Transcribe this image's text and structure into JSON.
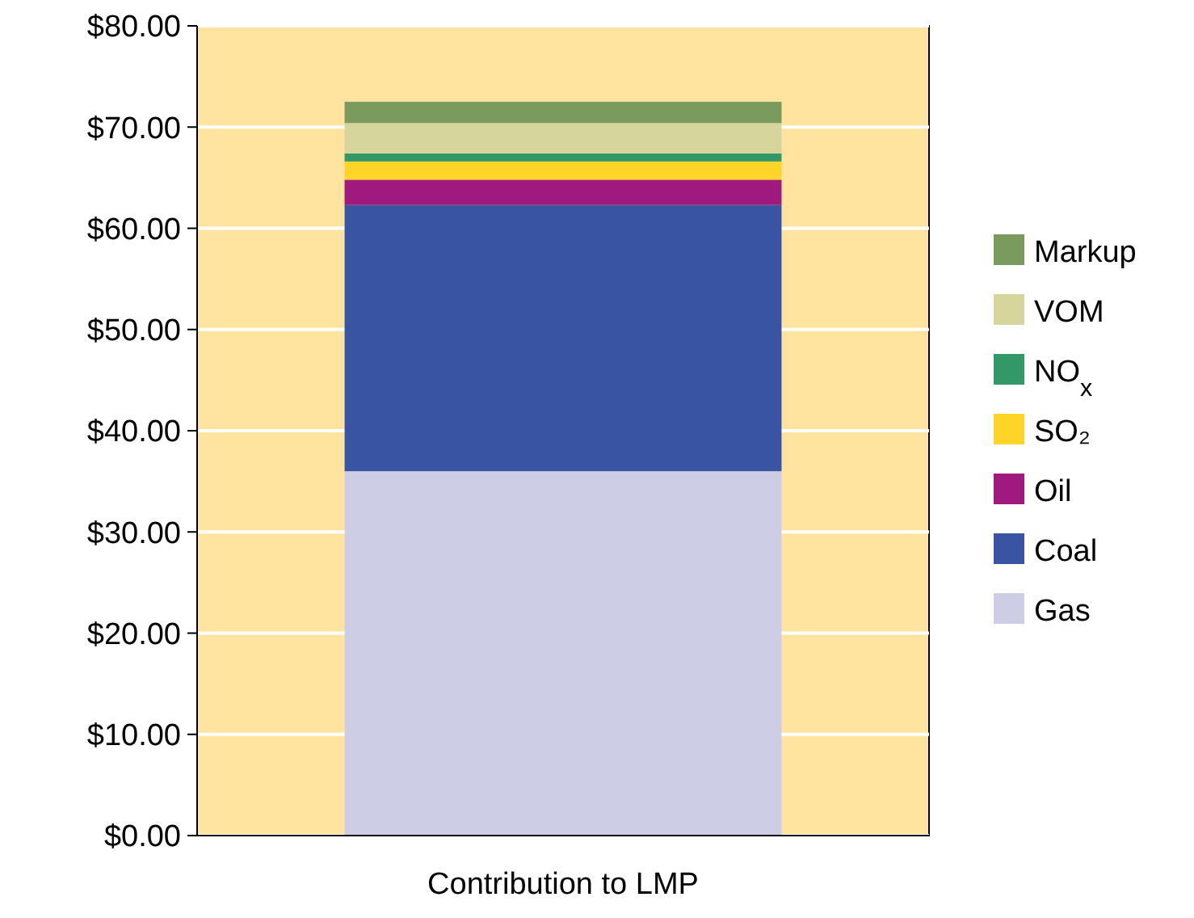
{
  "chart_data": {
    "type": "bar",
    "stacked": true,
    "categories": [
      "Contribution to LMP"
    ],
    "series": [
      {
        "name": "Gas",
        "color": "#cecde6",
        "values": [
          36
        ]
      },
      {
        "name": "Coal",
        "color": "#3a54a4",
        "values": [
          26.3
        ]
      },
      {
        "name": "Oil",
        "color": "#a0197e",
        "values": [
          2.5
        ]
      },
      {
        "name": "SO₂",
        "color": "#fed429",
        "values": [
          1.8
        ]
      },
      {
        "name": "NO$_{x}$",
        "color": "#329966",
        "values": [
          0.8
        ]
      },
      {
        "name": "VOM",
        "color": "#d5d59c",
        "values": [
          3.0
        ]
      },
      {
        "name": "Markup",
        "color": "#7a9a5e",
        "values": [
          2.1
        ]
      }
    ],
    "ylim": [
      0,
      80
    ],
    "yticks": [
      {
        "value": 0,
        "label": "$0.00"
      },
      {
        "value": 10,
        "label": "$10.00"
      },
      {
        "value": 20,
        "label": "$20.00"
      },
      {
        "value": 30,
        "label": "$30.00"
      },
      {
        "value": 40,
        "label": "$40.00"
      },
      {
        "value": 50,
        "label": "$50.00"
      },
      {
        "value": 60,
        "label": "$60.00"
      },
      {
        "value": 70,
        "label": "$70.00"
      },
      {
        "value": 80,
        "label": "$80.00"
      }
    ],
    "grid": "y",
    "legend": "right"
  }
}
